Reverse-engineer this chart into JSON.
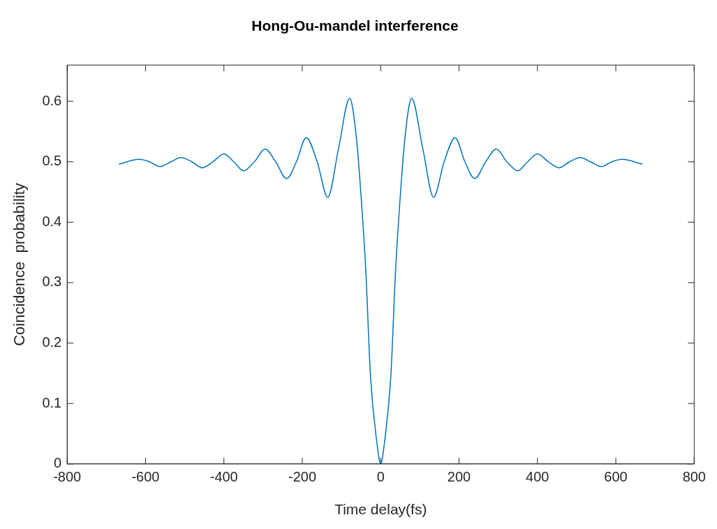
{
  "chart_data": {
    "type": "line",
    "title": "Hong-Ou-mandel interference",
    "xlabel": "Time delay(fs)",
    "ylabel": "Coincidence  probability",
    "x": [
      -668,
      -616,
      -590,
      -564,
      -535,
      -510,
      -482,
      -455,
      -428,
      -400,
      -375,
      -350,
      -322,
      -295,
      -268,
      -240,
      -215,
      -190,
      -162,
      -135,
      -108,
      -79,
      -62,
      -51,
      -38,
      -26,
      -10,
      0,
      10,
      26,
      38,
      51,
      62,
      79,
      108,
      135,
      162,
      190,
      215,
      240,
      268,
      295,
      322,
      350,
      375,
      400,
      428,
      455,
      482,
      510,
      535,
      564,
      590,
      616,
      668
    ],
    "series": [
      {
        "color": "#0072bd",
        "values": [
          0.496,
          0.504,
          0.5,
          0.492,
          0.5,
          0.507,
          0.5,
          0.49,
          0.5,
          0.513,
          0.5,
          0.485,
          0.5,
          0.521,
          0.5,
          0.472,
          0.5,
          0.54,
          0.5,
          0.441,
          0.52,
          0.605,
          0.54,
          0.452,
          0.32,
          0.146,
          0.037,
          0,
          0.037,
          0.146,
          0.32,
          0.452,
          0.54,
          0.605,
          0.52,
          0.441,
          0.5,
          0.54,
          0.5,
          0.472,
          0.5,
          0.521,
          0.5,
          0.485,
          0.5,
          0.513,
          0.5,
          0.49,
          0.5,
          0.507,
          0.5,
          0.492,
          0.5,
          0.504,
          0.496
        ]
      }
    ],
    "xlim": [
      -800,
      800
    ],
    "xticks": [
      -800,
      -600,
      -400,
      -200,
      0,
      200,
      400,
      600,
      800
    ],
    "ylim": [
      0,
      0.66
    ],
    "yticks": [
      0,
      0.1,
      0.2,
      0.3,
      0.4,
      0.5,
      0.6
    ],
    "grid": false,
    "legend": false,
    "marker": "none",
    "line_style": "solid"
  }
}
